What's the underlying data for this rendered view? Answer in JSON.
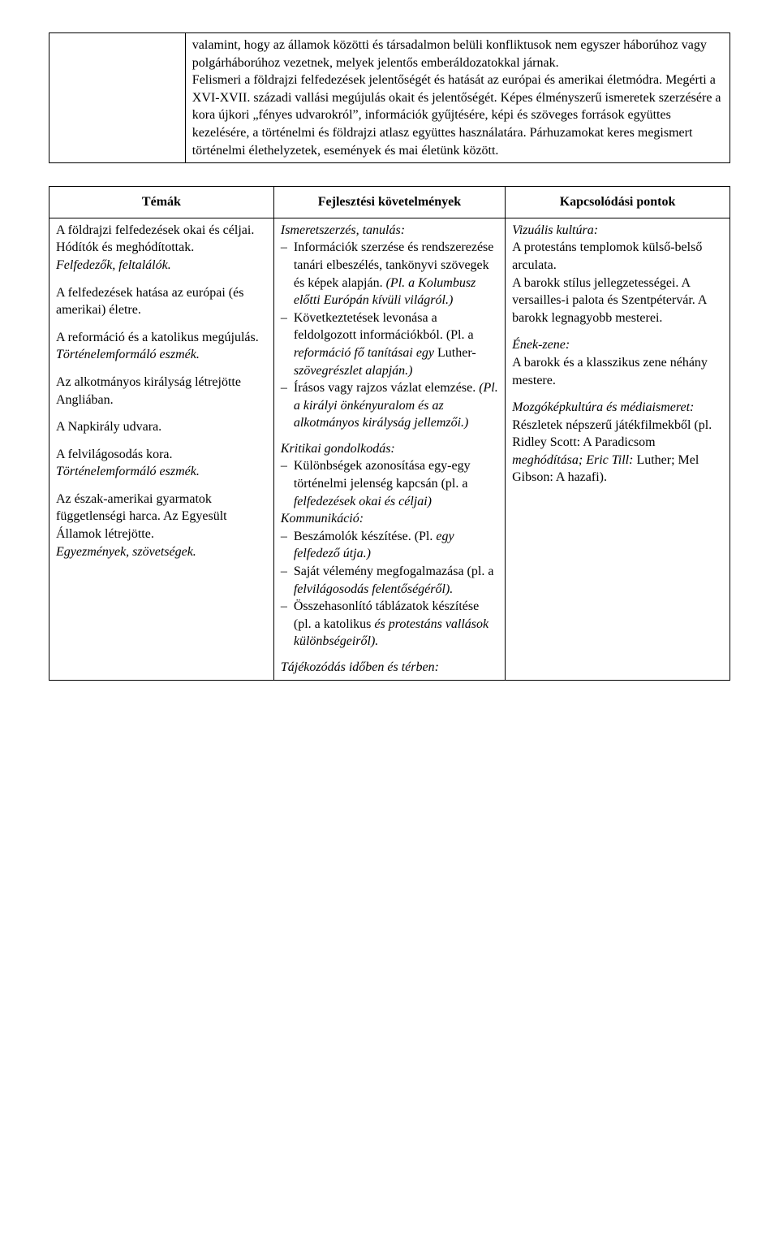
{
  "intro": {
    "text": "valamint, hogy az államok közötti és társadalmon belüli konfliktusok nem egyszer háborúhoz vagy polgárháborúhoz vezetnek, melyek jelentős emberáldozatokkal járnak.\nFelismeri a földrajzi felfedezések jelentőségét és hatását az európai és amerikai életmódra. Megérti a XVI-XVII. századi vallási megújulás okait és jelentőségét. Képes élményszerű ismeretek szerzésére a kora újkori „fényes udvarokról”, információk gyűjtésére, képi és szöveges források együttes kezelésére, a történelmi és földrajzi atlasz együttes használatára. Párhuzamokat keres megismert történelmi élethelyzetek, események és mai életünk között."
  },
  "headers": {
    "temak": "Témák",
    "fejl": "Fejlesztési követelmények",
    "kapcs": "Kapcsolódási pontok"
  },
  "temak": {
    "p1a": "A földrajzi felfedezések okai és céljai. Hódítók és meghódítottak.",
    "p1b": "Felfedezők, feltalálók.",
    "p2": "A felfedezések hatása az európai (és amerikai) életre.",
    "p3a": "A reformáció és a katolikus megújulás.",
    "p3b": "Történelemformáló eszmék.",
    "p4": "Az alkotmányos királyság létrejötte Angliában.",
    "p5": "A Napkirály udvara.",
    "p6a": "A felvilágosodás kora.",
    "p6b": "Történelemformáló eszmék.",
    "p7a": "Az észak-amerikai gyarmatok függetlenségi harca. Az Egyesült Államok létrejötte.",
    "p7b": "Egyezmények, szövetségek."
  },
  "fejl": {
    "ismeret_label": "Ismeretszerzés, tanulás:",
    "ismeret_items": [
      {
        "main": "Információk szerzése és rendszerezése tanári elbeszélés, tankönyvi szövegek és képek alapján. ",
        "italic": "(Pl. a Kolumbusz előtti Európán kívüli világról.)"
      },
      {
        "main": "Következtetések levonása a feldolgozott információkból. (Pl. a ",
        "italic": "reformáció fő tanításai egy ",
        "main2": "Luther-",
        "italic2": "szövegrészlet alapján.)"
      },
      {
        "main": "Írásos vagy rajzos vázlat elemzése. ",
        "italic": "(Pl. a királyi önkényuralom és az alkotmányos királyság jellemzői.)"
      }
    ],
    "kritikai_label": "Kritikai gondolkodás:",
    "kritikai_items": [
      {
        "main": "Különbségek azonosítása egy-egy történelmi jelenség kapcsán (pl. a ",
        "italic": "felfedezések okai és céljai)"
      }
    ],
    "komm_label": "Kommunikáció:",
    "komm_items": [
      {
        "main": "Beszámolók készítése. (Pl. ",
        "italic": "egy felfedező útja.)"
      },
      {
        "main": "Saját vélemény megfogalmazása (pl. a ",
        "italic": "felvilágosodás felentőségéről).",
        "main2": ""
      },
      {
        "main": "Összehasonlító táblázatok készítése (pl. a katolikus ",
        "italic": "és protestáns vallások különbségeiről)."
      }
    ],
    "tajek_label": "Tájékozódás időben és térben:"
  },
  "kapcs": {
    "p1_label": "Vizuális kultúra:",
    "p1_text": "A protestáns templomok külső-belső arculata.\nA barokk stílus jellegzetességei. A versailles-i palota és Szentpétervár. A barokk legnagyobb mesterei.",
    "p2_label": "Ének-zene:",
    "p2_text": "A barokk és a klasszikus zene néhány mestere.",
    "p3_label": "Mozgóképkultúra és médiaismeret:",
    "p3_text_a": "Részletek népszerű játékfilmekből (pl. Ridley Scott: A Paradicsom ",
    "p3_text_b": "meghódítása; Eric Till: ",
    "p3_text_c": "Luther; Mel Gibson: A hazafi)."
  }
}
